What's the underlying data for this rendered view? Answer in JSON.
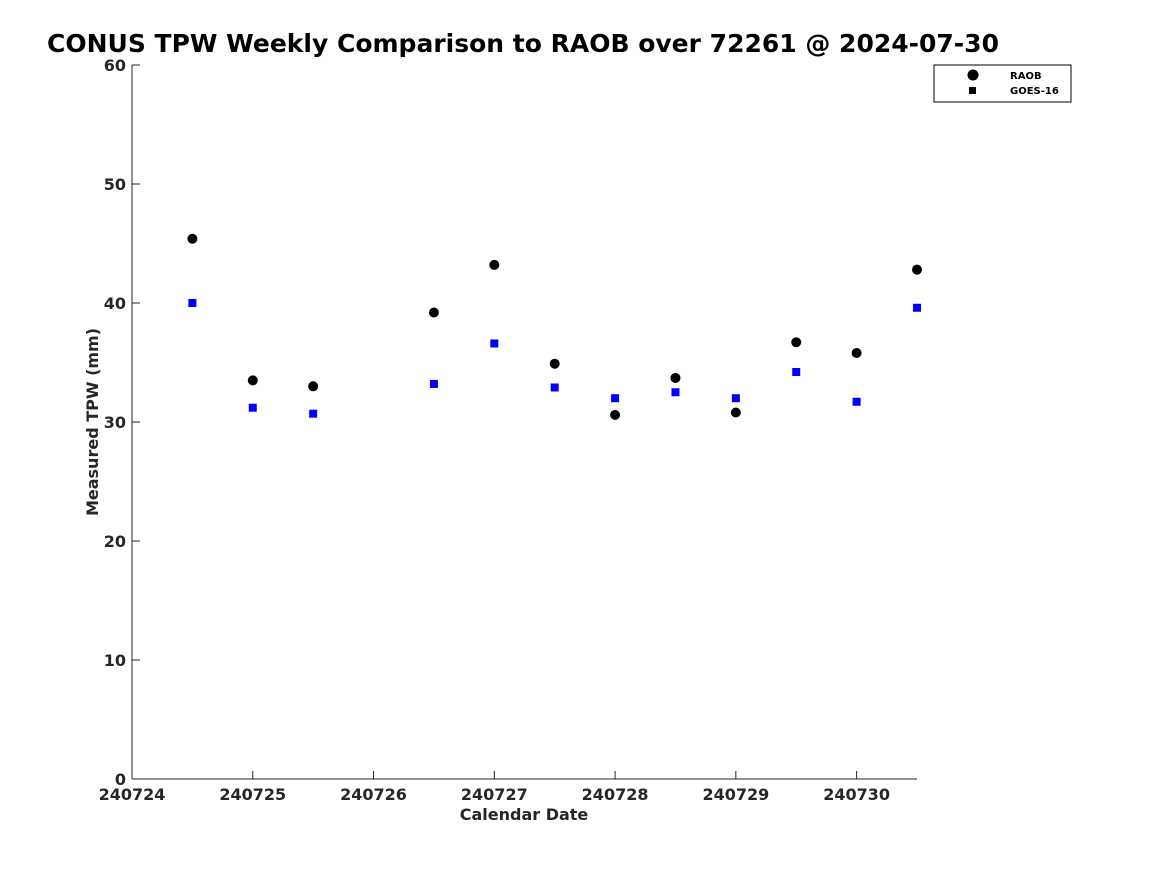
{
  "chart_data": {
    "type": "scatter",
    "title": "CONUS TPW Weekly Comparison to RAOB over 72261 @ 2024-07-30",
    "xlabel": "Calendar Date",
    "ylabel": "Measured TPW (mm)",
    "xlim": [
      240724,
      240730.5
    ],
    "ylim": [
      0,
      60
    ],
    "x_ticks": [
      240724,
      240725,
      240726,
      240727,
      240728,
      240729,
      240730
    ],
    "x_tick_labels": [
      "240724",
      "240725",
      "240726",
      "240727",
      "240728",
      "240729",
      "240730"
    ],
    "y_ticks": [
      0,
      10,
      20,
      30,
      40,
      50,
      60
    ],
    "y_tick_labels": [
      "0",
      "10",
      "20",
      "30",
      "40",
      "50",
      "60"
    ],
    "grid": false,
    "legend_position": "top-right",
    "series": [
      {
        "name": "RAOB",
        "marker": "circle",
        "color": "#000000",
        "x": [
          240724.5,
          240725,
          240725.5,
          240726.5,
          240727,
          240727.5,
          240728,
          240728.5,
          240729,
          240729.5,
          240730,
          240730.5
        ],
        "y": [
          45.4,
          33.5,
          33.0,
          39.2,
          43.2,
          34.9,
          30.6,
          33.7,
          30.8,
          36.7,
          35.8,
          42.8
        ]
      },
      {
        "name": "GOES-16",
        "marker": "square",
        "color": "#0000ff",
        "x": [
          240724.5,
          240725,
          240725.5,
          240726.5,
          240727,
          240727.5,
          240728,
          240728.5,
          240729,
          240729.5,
          240730,
          240730.5
        ],
        "y": [
          40.0,
          31.2,
          30.7,
          33.2,
          36.6,
          32.9,
          32.0,
          32.5,
          32.0,
          34.2,
          31.7,
          39.6
        ]
      }
    ]
  }
}
